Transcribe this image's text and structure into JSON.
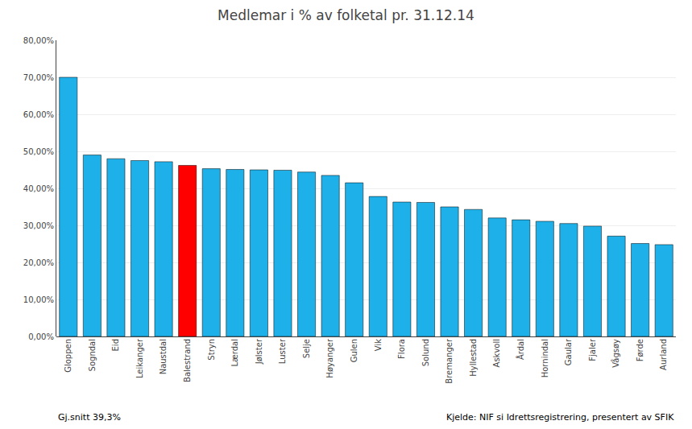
{
  "chart_data": {
    "type": "bar",
    "title": "Medlemar i % av folketal pr. 31.12.14",
    "categories": [
      "Gloppen",
      "Sogndal",
      "Eid",
      "Leikanger",
      "Naustdal",
      "Balestrand",
      "Stryn",
      "Lærdal",
      "Jølster",
      "Luster",
      "Selje",
      "Høyanger",
      "Gulen",
      "Vik",
      "Flora",
      "Solund",
      "Bremanger",
      "Hyllestad",
      "Askvoll",
      "Årdal",
      "Hornindal",
      "Gaular",
      "Fjaler",
      "Vågsøy",
      "Førde",
      "Aurland"
    ],
    "values": [
      0.7,
      0.49,
      0.48,
      0.475,
      0.472,
      0.462,
      0.453,
      0.451,
      0.45,
      0.449,
      0.444,
      0.435,
      0.415,
      0.378,
      0.363,
      0.362,
      0.35,
      0.343,
      0.32,
      0.315,
      0.311,
      0.305,
      0.298,
      0.271,
      0.251,
      0.248
    ],
    "colors": [
      "#1eb0e8",
      "#1eb0e8",
      "#1eb0e8",
      "#1eb0e8",
      "#1eb0e8",
      "#ff0000",
      "#1eb0e8",
      "#1eb0e8",
      "#1eb0e8",
      "#1eb0e8",
      "#1eb0e8",
      "#1eb0e8",
      "#1eb0e8",
      "#1eb0e8",
      "#1eb0e8",
      "#1eb0e8",
      "#1eb0e8",
      "#1eb0e8",
      "#1eb0e8",
      "#1eb0e8",
      "#1eb0e8",
      "#1eb0e8",
      "#1eb0e8",
      "#1eb0e8",
      "#1eb0e8",
      "#1eb0e8"
    ],
    "ylim": [
      0.0,
      0.8
    ],
    "yticks": [
      {
        "value": 0.0,
        "label": "0,00%"
      },
      {
        "value": 0.1,
        "label": "10,00%"
      },
      {
        "value": 0.2,
        "label": "20,00%"
      },
      {
        "value": 0.3,
        "label": "30,00%"
      },
      {
        "value": 0.4,
        "label": "40,00%"
      },
      {
        "value": 0.5,
        "label": "50,00%"
      },
      {
        "value": 0.6,
        "label": "60,00%"
      },
      {
        "value": 0.7,
        "label": "70,00%"
      },
      {
        "value": 0.8,
        "label": "80,00%"
      }
    ],
    "annotations": [
      "Gj.snitt 39,3%",
      "Kjelde: NIF si Idrettsregistrering, presentert av SFIK"
    ],
    "grid": true
  }
}
